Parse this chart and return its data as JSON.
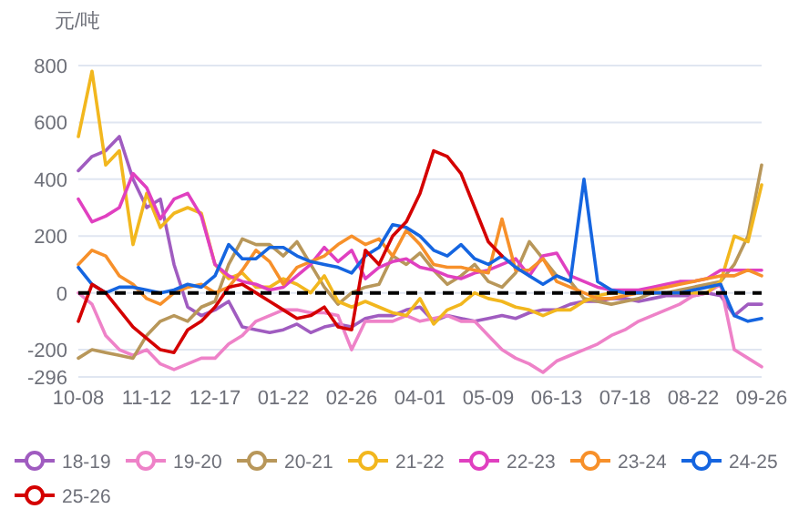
{
  "chart_data": {
    "type": "line",
    "ylabel": "元/吨",
    "categories": [
      "10-08",
      null,
      null,
      null,
      null,
      "11-12",
      null,
      null,
      null,
      null,
      "12-17",
      null,
      null,
      null,
      null,
      "01-22",
      null,
      null,
      null,
      null,
      "02-26",
      null,
      null,
      null,
      null,
      "04-01",
      null,
      null,
      null,
      null,
      "05-09",
      null,
      null,
      null,
      null,
      "06-13",
      null,
      null,
      null,
      null,
      "07-18",
      null,
      null,
      null,
      null,
      "08-22",
      null,
      null,
      null,
      null,
      "09-26"
    ],
    "ylim": [
      -296,
      800
    ],
    "yticks": [
      -296,
      -200,
      0,
      200,
      400,
      600,
      800
    ],
    "grid": "y",
    "legend": "bottom",
    "marker": "none",
    "line_style": "solid",
    "ref_lines": [
      {
        "axis": "y",
        "value": 0,
        "color": "#000000",
        "line_style": "dashed"
      }
    ],
    "series": [
      {
        "name": "18-19",
        "color": "#a05cc0",
        "values": [
          430,
          480,
          500,
          550,
          400,
          300,
          330,
          100,
          -50,
          -80,
          -60,
          -30,
          -120,
          -130,
          -140,
          -130,
          -110,
          -140,
          -120,
          -110,
          -120,
          -90,
          -80,
          -80,
          -60,
          -50,
          -100,
          -80,
          -90,
          -100,
          -90,
          -80,
          -90,
          -70,
          -60,
          -60,
          -40,
          -30,
          -30,
          -20,
          -20,
          -30,
          -20,
          -10,
          -10,
          -10,
          0,
          -10,
          -80,
          -40,
          -40
        ]
      },
      {
        "name": "19-20",
        "color": "#ee82c8",
        "values": [
          0,
          -40,
          -150,
          -200,
          -220,
          -200,
          -250,
          -270,
          -250,
          -230,
          -230,
          -180,
          -150,
          -100,
          -80,
          -60,
          -60,
          -70,
          -70,
          -80,
          -200,
          -100,
          -100,
          -100,
          -80,
          -100,
          -90,
          -80,
          -100,
          -100,
          -150,
          -200,
          -230,
          -250,
          -280,
          -240,
          -220,
          -200,
          -180,
          -150,
          -130,
          -100,
          -80,
          -60,
          -40,
          -10,
          0,
          30,
          -200,
          -230,
          -260
        ]
      },
      {
        "name": "20-21",
        "color": "#b8975a",
        "values": [
          -230,
          -200,
          -210,
          -220,
          -230,
          -150,
          -100,
          -80,
          -100,
          -50,
          -30,
          100,
          190,
          170,
          170,
          130,
          180,
          100,
          20,
          -40,
          0,
          20,
          30,
          130,
          100,
          140,
          80,
          30,
          60,
          100,
          40,
          20,
          70,
          180,
          120,
          60,
          40,
          -20,
          -30,
          -40,
          -30,
          -20,
          0,
          0,
          10,
          20,
          30,
          40,
          100,
          200,
          450
        ]
      },
      {
        "name": "21-22",
        "color": "#f2b71e",
        "values": [
          550,
          780,
          450,
          500,
          170,
          350,
          230,
          280,
          300,
          280,
          100,
          50,
          70,
          20,
          20,
          50,
          30,
          0,
          60,
          -30,
          -50,
          -30,
          -50,
          -70,
          -80,
          -20,
          -110,
          -60,
          -40,
          0,
          -20,
          -30,
          -50,
          -60,
          -80,
          -60,
          -60,
          -30,
          -10,
          0,
          0,
          0,
          0,
          0,
          0,
          0,
          0,
          40,
          200,
          180,
          380
        ]
      },
      {
        "name": "22-23",
        "color": "#e040c0",
        "values": [
          330,
          250,
          270,
          300,
          420,
          370,
          260,
          330,
          350,
          270,
          100,
          60,
          40,
          30,
          10,
          20,
          60,
          100,
          160,
          110,
          150,
          50,
          90,
          110,
          120,
          90,
          80,
          60,
          50,
          70,
          80,
          100,
          120,
          60,
          130,
          140,
          60,
          40,
          20,
          10,
          10,
          10,
          20,
          30,
          40,
          40,
          50,
          80,
          80,
          80,
          80
        ]
      },
      {
        "name": "23-24",
        "color": "#f7902a",
        "values": [
          100,
          150,
          130,
          60,
          30,
          -20,
          -40,
          0,
          20,
          30,
          0,
          20,
          80,
          150,
          110,
          30,
          90,
          110,
          130,
          170,
          200,
          170,
          190,
          130,
          220,
          170,
          100,
          90,
          90,
          80,
          70,
          260,
          80,
          80,
          120,
          40,
          20,
          0,
          -20,
          -20,
          -10,
          0,
          10,
          20,
          30,
          40,
          50,
          60,
          60,
          80,
          60
        ]
      },
      {
        "name": "24-25",
        "color": "#1565e0",
        "values": [
          90,
          30,
          0,
          20,
          20,
          10,
          0,
          10,
          30,
          20,
          60,
          170,
          120,
          120,
          160,
          160,
          130,
          110,
          100,
          90,
          70,
          130,
          160,
          240,
          230,
          200,
          150,
          130,
          170,
          120,
          100,
          130,
          90,
          60,
          30,
          60,
          40,
          400,
          40,
          10,
          0,
          0,
          0,
          0,
          0,
          10,
          20,
          30,
          -80,
          -100,
          -90
        ]
      },
      {
        "name": "25-26",
        "color": "#d40000",
        "values": [
          -100,
          30,
          0,
          -60,
          -120,
          -160,
          -200,
          -210,
          -130,
          -100,
          -50,
          20,
          30,
          0,
          -30,
          -60,
          -90,
          -80,
          -50,
          -120,
          -130,
          150,
          100,
          200,
          250,
          350,
          500,
          480,
          420,
          300,
          180,
          130,
          null,
          null,
          null,
          null,
          null,
          null,
          null,
          null,
          null,
          null,
          null,
          null,
          null,
          null,
          null,
          null,
          null,
          null,
          null
        ]
      }
    ]
  }
}
